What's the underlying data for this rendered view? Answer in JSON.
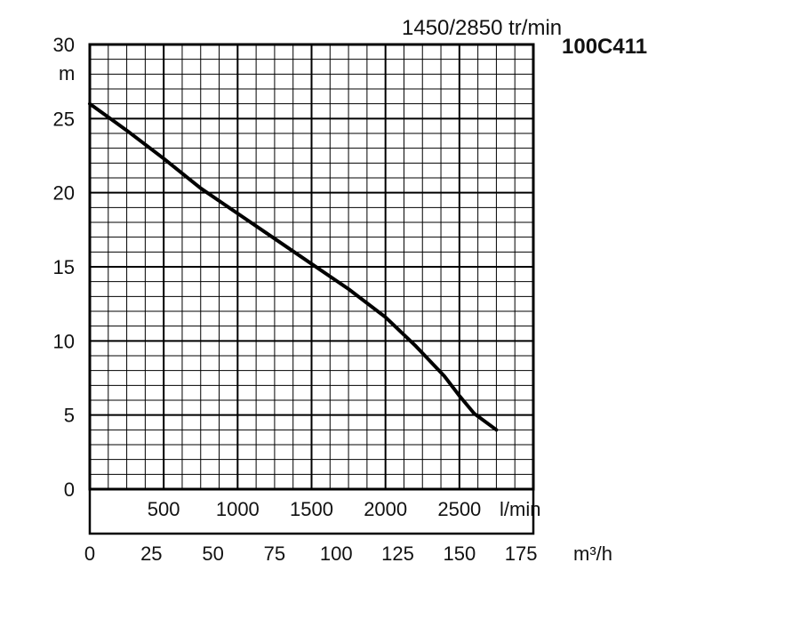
{
  "chart_data": {
    "type": "line",
    "title": "1450/2850 tr/min",
    "model": "100C411",
    "ylabel": "m",
    "ylim": [
      0,
      30
    ],
    "y_ticks": [
      "0",
      "5",
      "10",
      "15",
      "20",
      "25",
      "30"
    ],
    "x_primary": {
      "unit": "l/min",
      "ticks": [
        "500",
        "1000",
        "1500",
        "2000",
        "2500"
      ],
      "tick_values": [
        500,
        1000,
        1500,
        2000,
        2500
      ],
      "range": [
        0,
        3000
      ]
    },
    "x_secondary": {
      "unit": "m³/h",
      "ticks": [
        "0",
        "25",
        "50",
        "75",
        "100",
        "125",
        "150",
        "175"
      ],
      "tick_values": [
        0,
        25,
        50,
        75,
        100,
        125,
        150,
        175
      ],
      "range": [
        0,
        180
      ]
    },
    "grid": true,
    "series": [
      {
        "x_units": "l/min",
        "x": [
          0,
          250,
          500,
          750,
          1000,
          1250,
          1500,
          1750,
          2000,
          2200,
          2400,
          2500,
          2600,
          2750
        ],
        "y": [
          26,
          24.2,
          22.3,
          20.3,
          18.6,
          16.9,
          15.2,
          13.5,
          11.6,
          9.7,
          7.6,
          6.3,
          5.1,
          4
        ]
      }
    ]
  }
}
